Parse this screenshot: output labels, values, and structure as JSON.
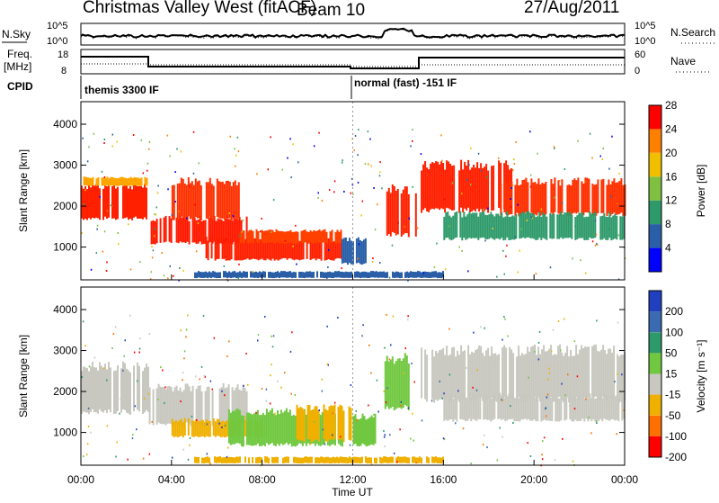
{
  "header": {
    "title": "Christmas Valley West (fitACF)",
    "beam": "Beam 10",
    "date": "27/Aug/2011"
  },
  "noise_panel": {
    "left_label": "N.Sky",
    "right_label": "N.Search",
    "left_ticks": [
      "10^5",
      "10^0"
    ],
    "right_ticks": [
      "10^5",
      "10^0"
    ]
  },
  "freq_panel": {
    "left_label_top": "Freq.",
    "left_label_bottom": "[MHz]",
    "right_label": "Nave",
    "left_ticks": [
      "18",
      "8"
    ],
    "right_ticks": [
      "60",
      "0"
    ]
  },
  "cpid": {
    "label": "CPID",
    "segments": [
      {
        "label": "themis 3300 IF",
        "start_hour": 0,
        "end_hour": 12
      },
      {
        "label": "normal (fast) -151 IF",
        "start_hour": 12,
        "end_hour": 24
      }
    ]
  },
  "chart_data": [
    {
      "type": "heatmap",
      "name": "power",
      "x_ticks": [
        "00:00",
        "04:00",
        "08:00",
        "12:00",
        "16:00",
        "20:00",
        "00:00"
      ],
      "xlim_hours": [
        0,
        24
      ],
      "ylabel": "Slant Range [km]",
      "y_ticks": [
        "1000",
        "2000",
        "3000",
        "4000"
      ],
      "ylim": [
        200,
        4550
      ],
      "colorbar": {
        "label": "Power [dB]",
        "ticks": [
          "4",
          "8",
          "12",
          "16",
          "20",
          "24",
          "28"
        ],
        "colors": [
          "#0000ff",
          "#2a5fa8",
          "#2e9a6a",
          "#80c040",
          "#f0c000",
          "#ff8000",
          "#ff0000"
        ]
      },
      "bands": [
        {
          "t": [
            0.0,
            3.0
          ],
          "r": [
            1700,
            2500
          ],
          "color": "#ff2000"
        },
        {
          "t": [
            0.1,
            2.9
          ],
          "r": [
            2500,
            2700
          ],
          "color": "#ffa500"
        },
        {
          "t": [
            3.0,
            7.3
          ],
          "r": [
            1100,
            1700
          ],
          "color": "#ff1a00"
        },
        {
          "t": [
            4.0,
            7.0
          ],
          "r": [
            1700,
            2600
          ],
          "color": "#ff3000"
        },
        {
          "t": [
            5.5,
            11.5
          ],
          "r": [
            700,
            1200
          ],
          "color": "#ff2000"
        },
        {
          "t": [
            7.0,
            11.5
          ],
          "r": [
            1100,
            1400
          ],
          "color": "#ff4000"
        },
        {
          "t": [
            11.5,
            12.6
          ],
          "r": [
            600,
            1200
          ],
          "color": "#2a5fa8"
        },
        {
          "t": [
            13.4,
            14.8
          ],
          "r": [
            1300,
            2400
          ],
          "color": "#ff2000"
        },
        {
          "t": [
            15.0,
            19.0
          ],
          "r": [
            1900,
            3000
          ],
          "color": "#ff2000"
        },
        {
          "t": [
            18.5,
            24.0
          ],
          "r": [
            1800,
            2600
          ],
          "color": "#ff3000"
        },
        {
          "t": [
            16.0,
            24.0
          ],
          "r": [
            1200,
            1800
          ],
          "color": "#2e9a6a"
        },
        {
          "t": [
            5.0,
            16.0
          ],
          "r": [
            250,
            400
          ],
          "color": "#2a5fa8"
        }
      ]
    },
    {
      "type": "heatmap",
      "name": "velocity",
      "x_ticks": [
        "00:00",
        "04:00",
        "08:00",
        "12:00",
        "16:00",
        "20:00",
        "00:00"
      ],
      "xlim_hours": [
        0,
        24
      ],
      "xlabel": "Time UT",
      "ylabel": "Slant Range [km]",
      "y_ticks": [
        "1000",
        "2000",
        "3000",
        "4000"
      ],
      "ylim": [
        200,
        4550
      ],
      "colorbar": {
        "label": "Velocity [m s⁻¹]",
        "ticks": [
          "200",
          "100",
          "50",
          "15",
          "-15",
          "-50",
          "-100",
          "-200"
        ],
        "colors": [
          "#2040c0",
          "#3a6ab0",
          "#2e9a6a",
          "#70c840",
          "#c8c8c0",
          "#f0b000",
          "#ff7000",
          "#ff0000"
        ]
      },
      "bands": [
        {
          "t": [
            0.0,
            3.0
          ],
          "r": [
            1500,
            2600
          ],
          "color": "#c8c8c0"
        },
        {
          "t": [
            3.0,
            7.3
          ],
          "r": [
            1200,
            2100
          ],
          "color": "#c8c8c0"
        },
        {
          "t": [
            4.0,
            8.0
          ],
          "r": [
            900,
            1300
          ],
          "color": "#f0b000"
        },
        {
          "t": [
            6.5,
            11.5
          ],
          "r": [
            700,
            1500
          ],
          "color": "#70c840"
        },
        {
          "t": [
            9.5,
            12.0
          ],
          "r": [
            800,
            1600
          ],
          "color": "#f0b000"
        },
        {
          "t": [
            12.0,
            13.0
          ],
          "r": [
            700,
            1400
          ],
          "color": "#70c840"
        },
        {
          "t": [
            13.4,
            14.5
          ],
          "r": [
            1600,
            2800
          ],
          "color": "#70c840"
        },
        {
          "t": [
            15.0,
            24.0
          ],
          "r": [
            1800,
            3000
          ],
          "color": "#c8c8c0"
        },
        {
          "t": [
            16.0,
            24.0
          ],
          "r": [
            1300,
            1900
          ],
          "color": "#c8c8c0"
        },
        {
          "t": [
            5.0,
            16.0
          ],
          "r": [
            250,
            400
          ],
          "color": "#f0b000"
        }
      ]
    }
  ]
}
